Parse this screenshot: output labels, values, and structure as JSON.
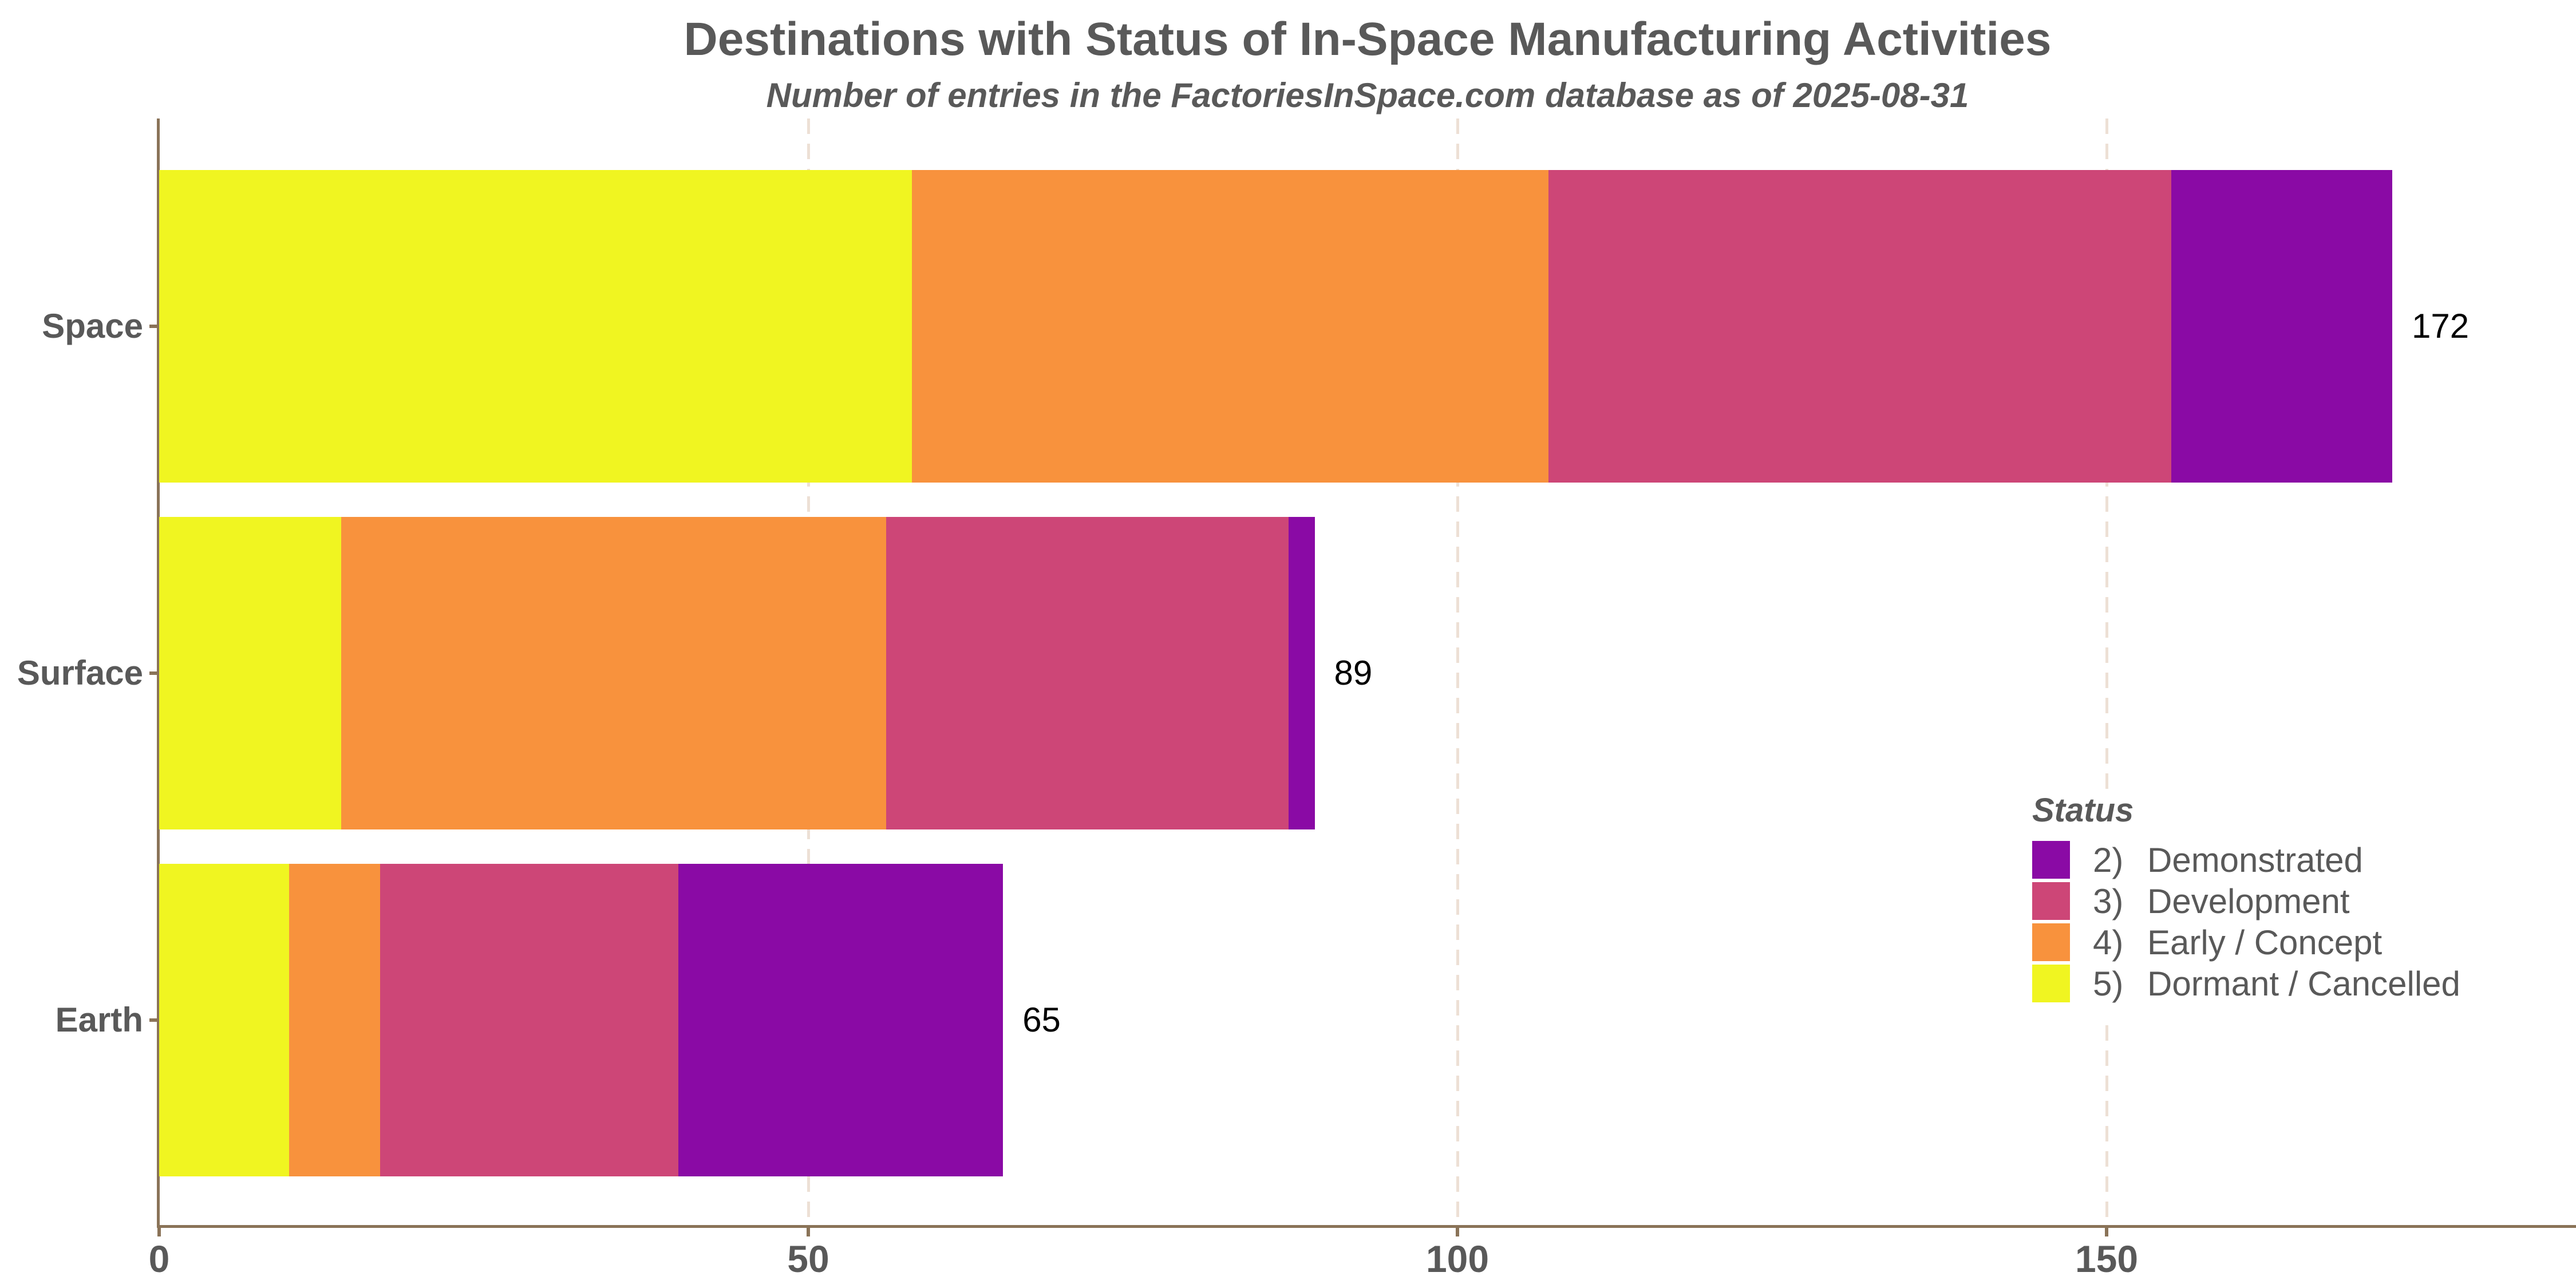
{
  "title": "Destinations with Status of In-Space Manufacturing Activities",
  "subtitle": "Number of entries in the FactoriesInSpace.com database as of 2025-08-31",
  "chart_data": {
    "type": "bar",
    "orientation": "horizontal",
    "stacked": true,
    "title": "Destinations with Status of In-Space Manufacturing Activities",
    "subtitle": "Number of entries in the FactoriesInSpace.com database as of 2025-08-31",
    "categories": [
      "Space",
      "Surface",
      "Earth"
    ],
    "series": [
      {
        "name": "5) Dormant / Cancelled",
        "color": "#F0F521",
        "values": [
          58,
          14,
          10
        ]
      },
      {
        "name": "4) Early / Concept",
        "color": "#F8923D",
        "values": [
          49,
          42,
          7
        ]
      },
      {
        "name": "3) Development",
        "color": "#CD4677",
        "values": [
          48,
          31,
          23
        ]
      },
      {
        "name": "2) Demonstrated",
        "color": "#8A0AA5",
        "values": [
          17,
          2,
          25
        ]
      }
    ],
    "totals": [
      172,
      89,
      65
    ],
    "x_ticks": [
      0,
      50,
      100,
      150
    ],
    "xlim": [
      0,
      186
    ],
    "xlabel": "",
    "ylabel": "",
    "grid": "vertical-dashed",
    "legend_position": "right-inside"
  },
  "legend": {
    "title": "Status",
    "items": [
      {
        "num": "2)",
        "label": "Demonstrated",
        "color": "#8A0AA5"
      },
      {
        "num": "3)",
        "label": "Development",
        "color": "#CD4677"
      },
      {
        "num": "4)",
        "label": "Early / Concept",
        "color": "#F8923D"
      },
      {
        "num": "5)",
        "label": "Dormant / Cancelled",
        "color": "#F0F521"
      }
    ]
  },
  "colors": {
    "axis": "#8A7358",
    "grid": "#EDE0D5",
    "text": "#595959",
    "value_label": "#000000",
    "background": "#FFFFFF"
  }
}
